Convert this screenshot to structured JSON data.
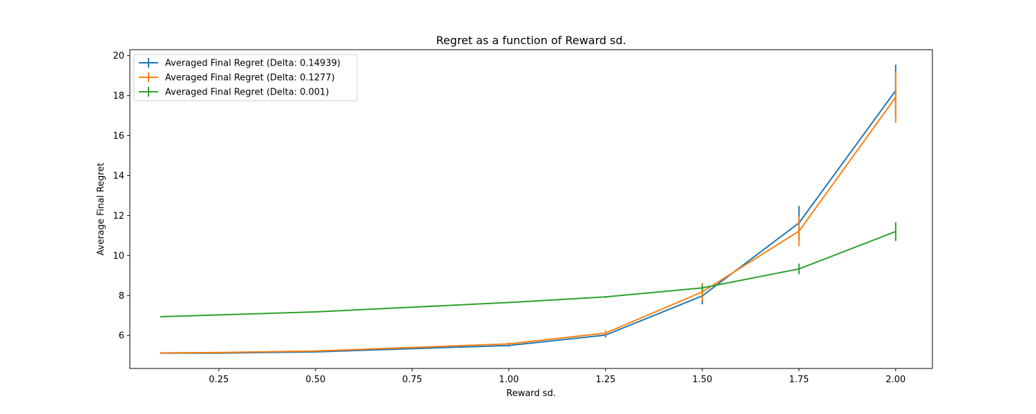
{
  "chart_data": {
    "type": "line",
    "title": "Regret as a function of Reward sd.",
    "xlabel": "Reward sd.",
    "ylabel": "Average Final Regret",
    "xlim": [
      0.02,
      2.095
    ],
    "ylim": [
      4.35,
      20.3
    ],
    "x_ticks": [
      0.25,
      0.5,
      0.75,
      1.0,
      1.25,
      1.5,
      1.75,
      2.0
    ],
    "x_tick_labels": [
      "0.25",
      "0.50",
      "0.75",
      "1.00",
      "1.25",
      "1.50",
      "1.75",
      "2.00"
    ],
    "y_ticks": [
      6,
      8,
      10,
      12,
      14,
      16,
      18,
      20
    ],
    "y_tick_labels": [
      "6",
      "8",
      "10",
      "12",
      "14",
      "16",
      "18",
      "20"
    ],
    "grid": false,
    "legend_position": "top-left",
    "x": [
      0.1,
      0.25,
      0.5,
      1.0,
      1.25,
      1.5,
      1.75,
      2.0
    ],
    "series": [
      {
        "name": "Averaged Final Regret (Delta: 0.14939)",
        "color": "#1f77b4",
        "values": [
          5.12,
          5.12,
          5.18,
          5.5,
          6.02,
          7.98,
          11.63,
          18.25
        ],
        "errors": [
          0.03,
          0.03,
          0.04,
          0.06,
          0.12,
          0.42,
          0.85,
          1.3
        ]
      },
      {
        "name": "Averaged Final Regret (Delta: 0.1277)",
        "color": "#ff7f0e",
        "values": [
          5.13,
          5.15,
          5.22,
          5.58,
          6.12,
          8.18,
          11.22,
          17.92
        ],
        "errors": [
          0.03,
          0.03,
          0.04,
          0.07,
          0.13,
          0.45,
          0.75,
          1.28
        ]
      },
      {
        "name": "Averaged Final Regret (Delta: 0.001)",
        "color": "#2ca02c",
        "values": [
          6.94,
          7.03,
          7.18,
          7.65,
          7.93,
          8.38,
          9.33,
          11.2
        ],
        "errors": [
          0.02,
          0.02,
          0.03,
          0.04,
          0.05,
          0.14,
          0.27,
          0.47
        ]
      }
    ]
  }
}
